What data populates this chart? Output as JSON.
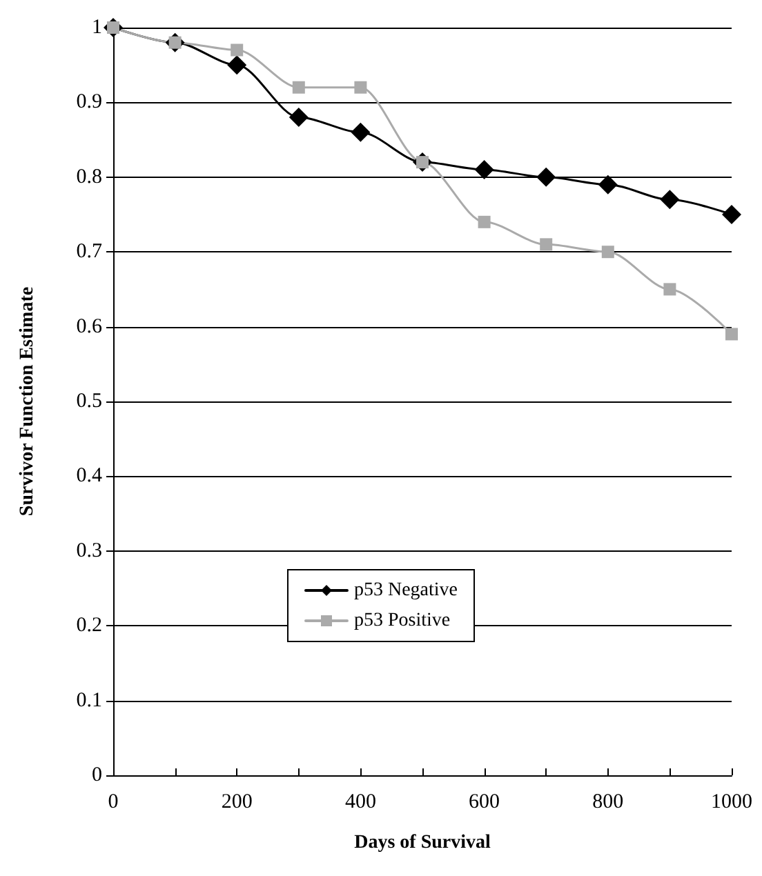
{
  "chart_data": {
    "type": "line",
    "xlabel": "Days of Survival",
    "ylabel": "Survivor Function Estimate",
    "x": [
      0,
      100,
      200,
      300,
      400,
      500,
      600,
      700,
      800,
      900,
      1000
    ],
    "series": [
      {
        "name": "p53 Negative",
        "color": "#000000",
        "marker": "diamond",
        "values": [
          1,
          0.98,
          0.95,
          0.88,
          0.86,
          0.82,
          0.81,
          0.8,
          0.79,
          0.77,
          0.75
        ]
      },
      {
        "name": "p53 Positive",
        "color": "#aaaaaa",
        "marker": "square",
        "values": [
          1,
          0.98,
          0.97,
          0.92,
          0.92,
          0.82,
          0.74,
          0.71,
          0.7,
          0.65,
          0.59
        ]
      }
    ],
    "xlim": [
      0,
      1000
    ],
    "xticks": [
      0,
      {
        "value": 100,
        "label": null
      },
      200,
      {
        "value": 300,
        "label": null
      },
      400,
      {
        "value": 500,
        "label": null
      },
      600,
      {
        "value": 700,
        "label": null
      },
      800,
      {
        "value": 900,
        "label": null
      },
      1000
    ],
    "ylim": [
      0,
      1
    ],
    "yticks": [
      0,
      0.1,
      0.2,
      0.3,
      0.4,
      0.5,
      0.6,
      0.7,
      0.8,
      0.9,
      1
    ],
    "grid": "y",
    "legend": "bottom"
  }
}
